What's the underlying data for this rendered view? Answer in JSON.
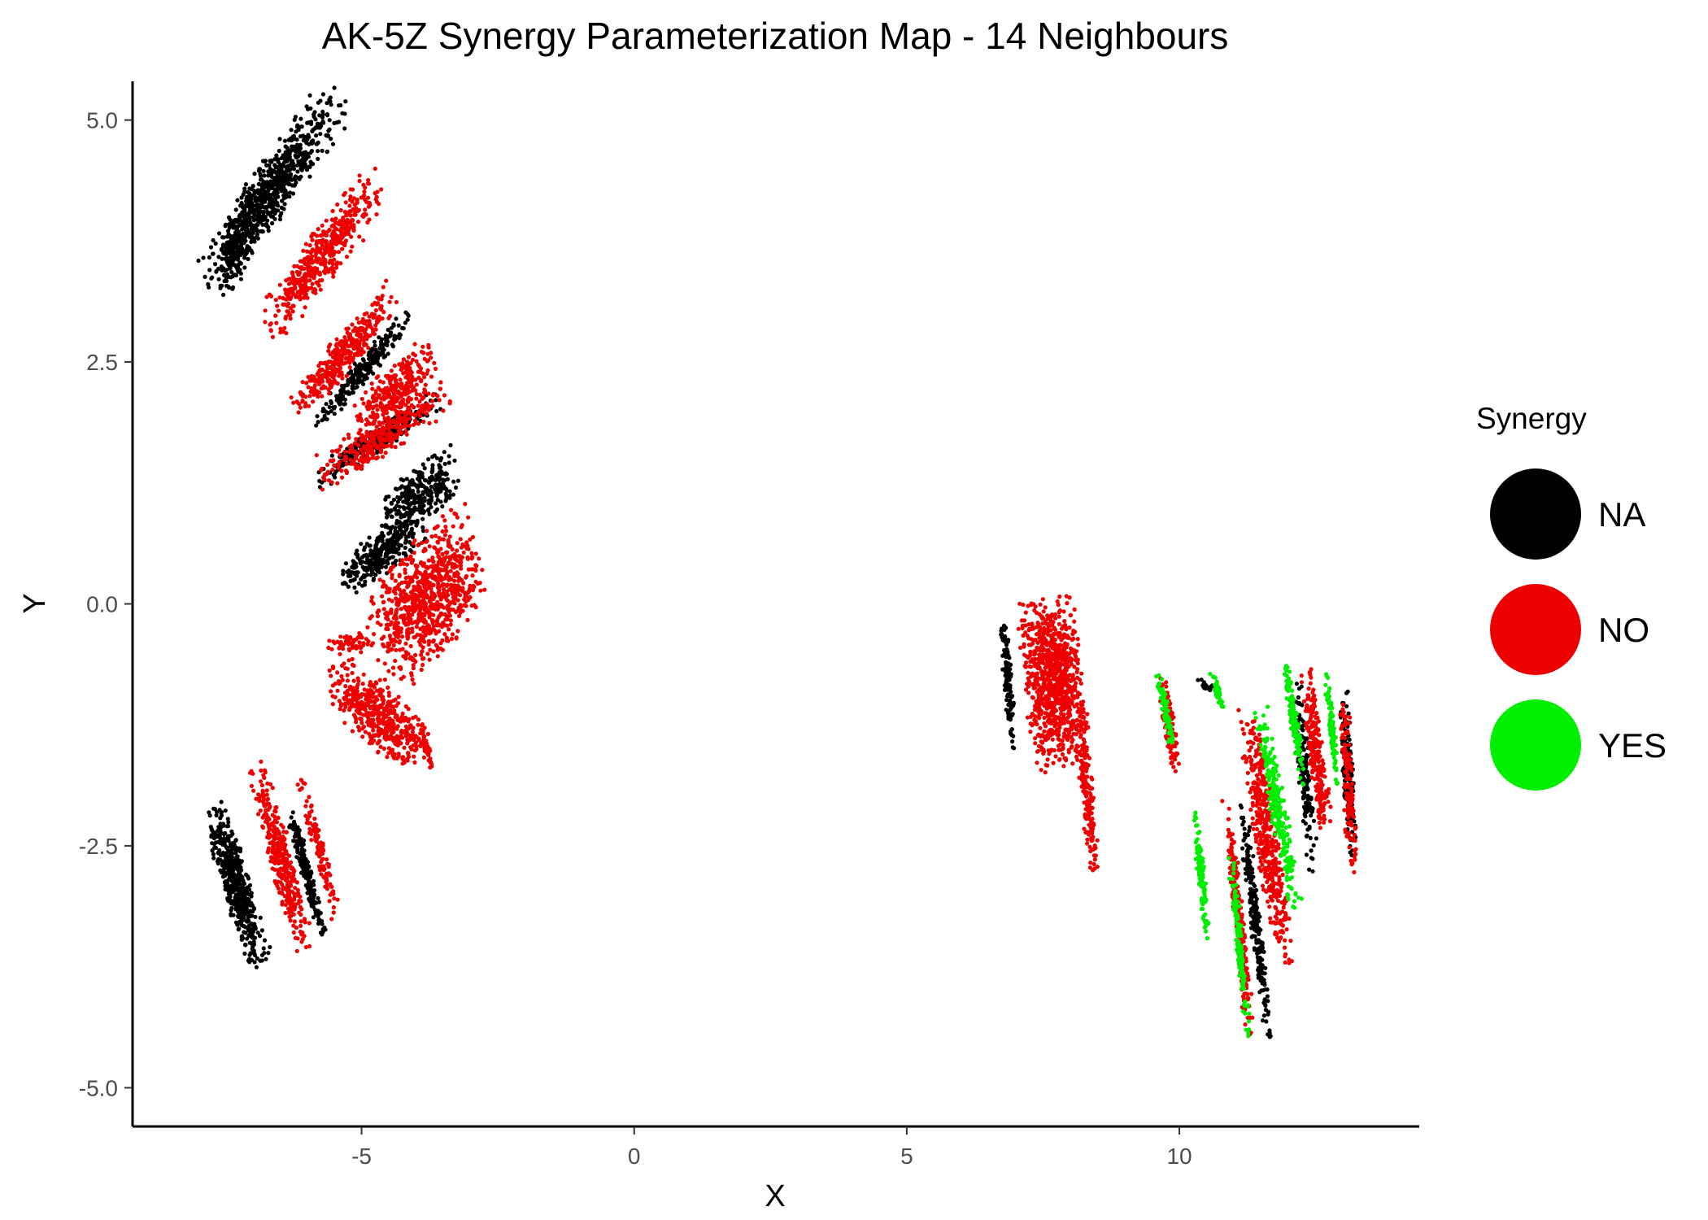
{
  "chart_data": {
    "type": "scatter",
    "title": "AK-5Z Synergy Parameterization Map - 14 Neighbours",
    "xlabel": "X",
    "ylabel": "Y",
    "xlim": [
      -9.2,
      14.4
    ],
    "ylim": [
      -5.4,
      5.4
    ],
    "x_ticks": [
      -5,
      0,
      5,
      10
    ],
    "y_ticks": [
      5.0,
      2.5,
      0.0,
      -2.5,
      -5.0
    ],
    "x_tick_labels": [
      "-5",
      "0",
      "5",
      "10"
    ],
    "y_tick_labels": [
      "5.0",
      "2.5",
      "0.0",
      "-2.5",
      "-5.0"
    ],
    "grid": false,
    "legend": {
      "title": "Synergy",
      "position": "right",
      "entries": [
        {
          "label": "NA",
          "color": "#000000"
        },
        {
          "label": "NO",
          "color": "#ee0000"
        },
        {
          "label": "YES",
          "color": "#00ee00"
        }
      ]
    },
    "series": [
      {
        "name": "NA",
        "color": "#000000",
        "clusters": [
          {
            "cx": -6.6,
            "cy": 4.3,
            "rx": 1.6,
            "ry": 0.35,
            "angle": 38,
            "n": 700
          },
          {
            "cx": -7.2,
            "cy": 3.8,
            "rx": 0.7,
            "ry": 0.25,
            "angle": 55,
            "n": 220
          },
          {
            "cx": -5.0,
            "cy": 2.4,
            "rx": 1.1,
            "ry": 0.14,
            "angle": 33,
            "n": 240
          },
          {
            "cx": -4.7,
            "cy": 1.7,
            "rx": 1.2,
            "ry": 0.14,
            "angle": 20,
            "n": 260
          },
          {
            "cx": -3.9,
            "cy": 1.15,
            "rx": 0.7,
            "ry": 0.3,
            "angle": 20,
            "n": 300
          },
          {
            "cx": -4.6,
            "cy": 0.55,
            "rx": 0.85,
            "ry": 0.25,
            "angle": 25,
            "n": 320
          },
          {
            "cx": -7.3,
            "cy": -2.9,
            "rx": 0.95,
            "ry": 0.25,
            "angle": -62,
            "n": 520
          },
          {
            "cx": -6.0,
            "cy": -2.8,
            "rx": 0.7,
            "ry": 0.1,
            "angle": -65,
            "n": 200
          },
          {
            "cx": 6.85,
            "cy": -0.8,
            "rx": 0.75,
            "ry": 0.08,
            "angle": -82,
            "n": 130
          },
          {
            "cx": 11.4,
            "cy": -3.3,
            "rx": 1.3,
            "ry": 0.1,
            "angle": -78,
            "n": 220
          },
          {
            "cx": 12.3,
            "cy": -1.8,
            "rx": 1.0,
            "ry": 0.12,
            "angle": -80,
            "n": 180
          },
          {
            "cx": 13.1,
            "cy": -1.8,
            "rx": 0.9,
            "ry": 0.1,
            "angle": -85,
            "n": 150
          },
          {
            "cx": 10.5,
            "cy": -0.85,
            "rx": 0.2,
            "ry": 0.05,
            "angle": -10,
            "n": 25
          }
        ]
      },
      {
        "name": "NO",
        "color": "#ee0000",
        "clusters": [
          {
            "cx": -5.7,
            "cy": 3.6,
            "rx": 1.3,
            "ry": 0.3,
            "angle": 35,
            "n": 500
          },
          {
            "cx": -5.3,
            "cy": 2.6,
            "rx": 1.2,
            "ry": 0.22,
            "angle": 33,
            "n": 350
          },
          {
            "cx": -4.4,
            "cy": 2.2,
            "rx": 0.8,
            "ry": 0.28,
            "angle": 25,
            "n": 280
          },
          {
            "cx": -4.6,
            "cy": 1.75,
            "rx": 1.3,
            "ry": 0.22,
            "angle": 20,
            "n": 320
          },
          {
            "cx": -3.8,
            "cy": 0.05,
            "rx": 1.1,
            "ry": 0.65,
            "angle": 30,
            "n": 850
          },
          {
            "cx": -5.2,
            "cy": -0.4,
            "rx": 0.5,
            "ry": 0.1,
            "angle": 0,
            "n": 60
          },
          {
            "cx": -4.7,
            "cy": -1.15,
            "rx": 1.0,
            "ry": 0.35,
            "angle": -25,
            "n": 480
          },
          {
            "cx": -6.5,
            "cy": -2.6,
            "rx": 1.1,
            "ry": 0.22,
            "angle": -65,
            "n": 350
          },
          {
            "cx": -5.8,
            "cy": -2.5,
            "rx": 0.8,
            "ry": 0.1,
            "angle": -65,
            "n": 120
          },
          {
            "cx": -3.8,
            "cy": -1.5,
            "rx": 0.3,
            "ry": 0.05,
            "angle": -65,
            "n": 40
          },
          {
            "cx": 7.7,
            "cy": -0.8,
            "rx": 0.9,
            "ry": 0.55,
            "angle": -80,
            "n": 900
          },
          {
            "cx": 8.3,
            "cy": -1.9,
            "rx": 0.9,
            "ry": 0.12,
            "angle": -80,
            "n": 180
          },
          {
            "cx": 9.8,
            "cy": -1.2,
            "rx": 0.55,
            "ry": 0.1,
            "angle": -75,
            "n": 120
          },
          {
            "cx": 11.1,
            "cy": -3.3,
            "rx": 1.3,
            "ry": 0.1,
            "angle": -80,
            "n": 220
          },
          {
            "cx": 11.6,
            "cy": -2.4,
            "rx": 1.4,
            "ry": 0.22,
            "angle": -75,
            "n": 450
          },
          {
            "cx": 12.5,
            "cy": -1.5,
            "rx": 0.9,
            "ry": 0.15,
            "angle": -78,
            "n": 240
          },
          {
            "cx": 13.1,
            "cy": -1.9,
            "rx": 0.9,
            "ry": 0.1,
            "angle": -85,
            "n": 140
          }
        ]
      },
      {
        "name": "YES",
        "color": "#00ee00",
        "clusters": [
          {
            "cx": 9.75,
            "cy": -1.1,
            "rx": 0.45,
            "ry": 0.07,
            "angle": -70,
            "n": 90
          },
          {
            "cx": 10.7,
            "cy": -0.9,
            "rx": 0.25,
            "ry": 0.05,
            "angle": -60,
            "n": 40
          },
          {
            "cx": 10.4,
            "cy": -2.8,
            "rx": 0.7,
            "ry": 0.07,
            "angle": -80,
            "n": 110
          },
          {
            "cx": 11.1,
            "cy": -3.5,
            "rx": 1.0,
            "ry": 0.07,
            "angle": -80,
            "n": 130
          },
          {
            "cx": 11.8,
            "cy": -2.1,
            "rx": 1.1,
            "ry": 0.15,
            "angle": -72,
            "n": 260
          },
          {
            "cx": 12.1,
            "cy": -1.2,
            "rx": 0.7,
            "ry": 0.08,
            "angle": -75,
            "n": 130
          },
          {
            "cx": 12.8,
            "cy": -1.3,
            "rx": 0.6,
            "ry": 0.06,
            "angle": -80,
            "n": 90
          }
        ]
      }
    ]
  }
}
